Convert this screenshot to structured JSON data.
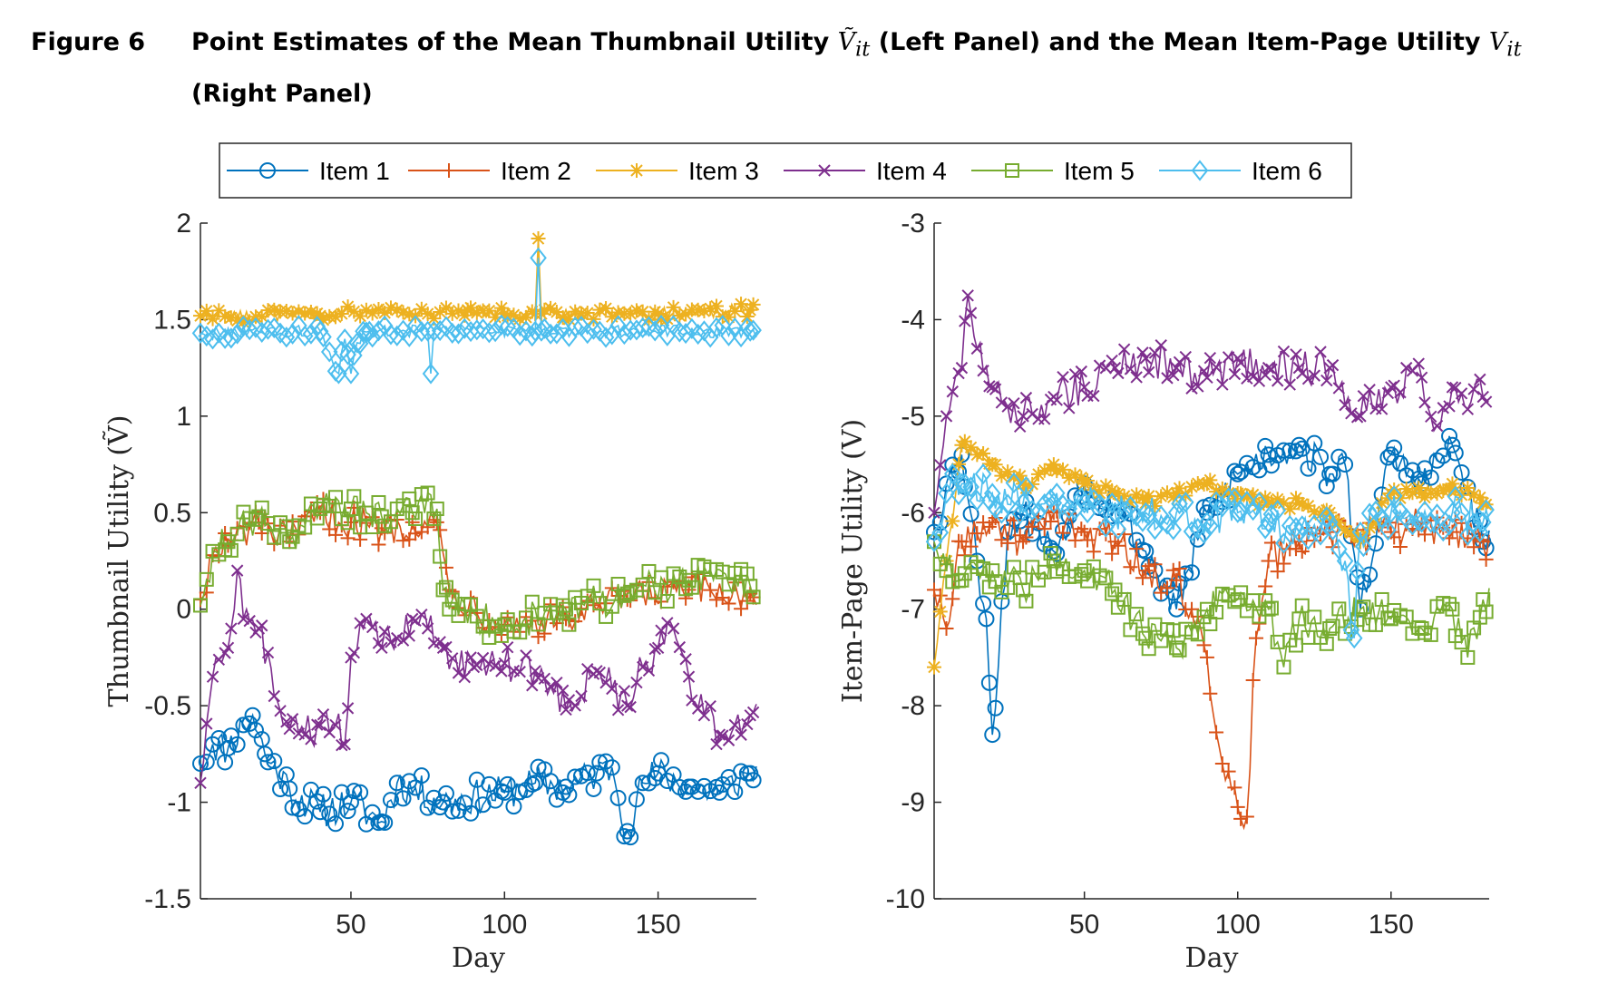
{
  "figure": {
    "label": "Figure 6",
    "title_part1": "Point Estimates of the Mean Thumbnail Utility ",
    "title_sym1": "Ṽ",
    "title_sub1": "it",
    "title_part2": " (Left Panel) and the Mean Item-Page Utility ",
    "title_sym2": "V",
    "title_sub2": "it",
    "title_part3": " (Right Panel)"
  },
  "legend": [
    {
      "name": "Item 1",
      "color": "#0072BD",
      "marker": "circle"
    },
    {
      "name": "Item 2",
      "color": "#D95319",
      "marker": "plus"
    },
    {
      "name": "Item 3",
      "color": "#EDB120",
      "marker": "asterisk"
    },
    {
      "name": "Item 4",
      "color": "#7E2F8E",
      "marker": "cross"
    },
    {
      "name": "Item 5",
      "color": "#77AC30",
      "marker": "square"
    },
    {
      "name": "Item 6",
      "color": "#4DBEEE",
      "marker": "diamond"
    }
  ],
  "chart_data": [
    {
      "type": "line",
      "panel": "left",
      "xlabel": "Day",
      "ylabel": "Thumbnail Utility (Ṽ)",
      "xlim": [
        1,
        182
      ],
      "ylim": [
        -1.5,
        2
      ],
      "xticks": [
        50,
        100,
        150
      ],
      "yticks": [
        -1.5,
        -1,
        -0.5,
        0,
        0.5,
        1,
        1.5,
        2
      ],
      "series_anchors": [
        {
          "name": "Item 1",
          "x": [
            1,
            5,
            10,
            15,
            18,
            22,
            30,
            40,
            50,
            60,
            65,
            80,
            100,
            110,
            120,
            130,
            135,
            140,
            145,
            150,
            160,
            170,
            180
          ],
          "y": [
            -0.8,
            -0.7,
            -0.72,
            -0.6,
            -0.55,
            -0.75,
            -0.93,
            -1.05,
            -1.0,
            -1.1,
            -0.9,
            -1.0,
            -0.95,
            -0.9,
            -0.92,
            -0.85,
            -0.82,
            -1.15,
            -0.9,
            -0.85,
            -0.92,
            -0.95,
            -0.85
          ]
        },
        {
          "name": "Item 2",
          "x": [
            1,
            5,
            10,
            20,
            30,
            40,
            50,
            60,
            70,
            78,
            82,
            100,
            120,
            140,
            160,
            180
          ],
          "y": [
            0.05,
            0.28,
            0.33,
            0.45,
            0.35,
            0.5,
            0.45,
            0.42,
            0.45,
            0.45,
            0.1,
            -0.08,
            -0.05,
            0.05,
            0.1,
            0.08
          ]
        },
        {
          "name": "Item 3",
          "x": [
            1,
            40,
            47,
            55,
            65,
            75,
            88,
            100,
            110,
            111,
            112,
            150,
            180
          ],
          "y": [
            1.52,
            1.52,
            1.53,
            1.55,
            1.55,
            1.53,
            1.55,
            1.53,
            1.53,
            1.92,
            1.53,
            1.53,
            1.55
          ]
        },
        {
          "name": "Item 4",
          "x": [
            1,
            5,
            10,
            13,
            15,
            20,
            25,
            30,
            35,
            40,
            45,
            48,
            50,
            55,
            60,
            65,
            70,
            75,
            80,
            90,
            100,
            110,
            115,
            120,
            125,
            130,
            140,
            145,
            150,
            155,
            160,
            165,
            170,
            175,
            180
          ],
          "y": [
            -0.9,
            -0.35,
            -0.2,
            0.2,
            -0.05,
            -0.1,
            -0.45,
            -0.62,
            -0.65,
            -0.6,
            -0.6,
            -0.7,
            -0.25,
            -0.05,
            -0.2,
            -0.15,
            -0.05,
            -0.1,
            -0.2,
            -0.3,
            -0.28,
            -0.32,
            -0.4,
            -0.52,
            -0.45,
            -0.32,
            -0.5,
            -0.3,
            -0.2,
            -0.1,
            -0.35,
            -0.55,
            -0.65,
            -0.6,
            -0.55
          ]
        },
        {
          "name": "Item 5",
          "x": [
            1,
            5,
            10,
            20,
            30,
            40,
            45,
            50,
            60,
            70,
            78,
            80,
            82,
            100,
            120,
            140,
            160,
            180
          ],
          "y": [
            0.02,
            0.3,
            0.35,
            0.48,
            0.35,
            0.52,
            0.58,
            0.52,
            0.48,
            0.5,
            0.52,
            0.1,
            0.0,
            -0.08,
            0.0,
            0.08,
            0.15,
            0.12
          ]
        },
        {
          "name": "Item 6",
          "x": [
            1,
            40,
            46,
            48,
            50,
            52,
            54,
            56,
            75,
            76,
            77,
            110,
            111,
            112,
            180
          ],
          "y": [
            1.43,
            1.44,
            1.22,
            1.4,
            1.22,
            1.38,
            1.44,
            1.44,
            1.44,
            1.22,
            1.44,
            1.44,
            1.82,
            1.44,
            1.44
          ]
        }
      ]
    },
    {
      "type": "line",
      "panel": "right",
      "xlabel": "Day",
      "ylabel": "Item-Page Utility (V)",
      "xlim": [
        1,
        182
      ],
      "ylim": [
        -10,
        -3
      ],
      "xticks": [
        50,
        100,
        150
      ],
      "yticks": [
        -10,
        -9,
        -8,
        -7,
        -6,
        -5,
        -4,
        -3
      ],
      "series_anchors": [
        {
          "name": "Item 1",
          "x": [
            1,
            5,
            10,
            15,
            18,
            20,
            25,
            30,
            40,
            50,
            60,
            70,
            80,
            90,
            100,
            110,
            120,
            130,
            135,
            140,
            150,
            160,
            170,
            180
          ],
          "y": [
            -6.2,
            -5.7,
            -5.4,
            -6.5,
            -7.1,
            -8.3,
            -6.2,
            -6.0,
            -6.4,
            -5.7,
            -5.9,
            -6.4,
            -7.0,
            -6.0,
            -5.6,
            -5.4,
            -5.3,
            -5.6,
            -5.5,
            -7.0,
            -5.4,
            -5.7,
            -5.3,
            -6.3
          ]
        },
        {
          "name": "Item 2",
          "x": [
            1,
            5,
            10,
            20,
            30,
            40,
            50,
            60,
            70,
            80,
            85,
            90,
            95,
            100,
            103,
            106,
            110,
            120,
            130,
            140,
            150,
            160,
            170,
            180
          ],
          "y": [
            -6.8,
            -7.2,
            -6.3,
            -6.1,
            -6.3,
            -6.0,
            -6.2,
            -6.3,
            -6.6,
            -6.7,
            -7.0,
            -7.5,
            -8.6,
            -9.05,
            -9.15,
            -7.3,
            -6.5,
            -6.3,
            -6.2,
            -6.3,
            -6.2,
            -6.1,
            -6.2,
            -6.3
          ]
        },
        {
          "name": "Item 3",
          "x": [
            1,
            5,
            10,
            15,
            20,
            30,
            40,
            50,
            60,
            70,
            80,
            90,
            100,
            110,
            120,
            130,
            140,
            150,
            160,
            170,
            180
          ],
          "y": [
            -7.6,
            -6.5,
            -5.3,
            -5.4,
            -5.5,
            -5.7,
            -5.5,
            -5.7,
            -5.8,
            -5.9,
            -5.8,
            -5.7,
            -5.8,
            -5.9,
            -5.9,
            -6.0,
            -6.3,
            -5.8,
            -5.8,
            -5.7,
            -5.9
          ]
        },
        {
          "name": "Item 4",
          "x": [
            1,
            5,
            10,
            12,
            15,
            20,
            25,
            30,
            40,
            50,
            60,
            70,
            80,
            90,
            100,
            110,
            120,
            130,
            140,
            150,
            160,
            165,
            170,
            180
          ],
          "y": [
            -6.0,
            -5.0,
            -4.5,
            -3.75,
            -4.3,
            -4.7,
            -4.9,
            -5.0,
            -4.8,
            -4.7,
            -4.5,
            -4.4,
            -4.5,
            -4.6,
            -4.4,
            -4.5,
            -4.5,
            -4.5,
            -5.0,
            -4.7,
            -4.6,
            -5.1,
            -4.7,
            -4.8
          ]
        },
        {
          "name": "Item 5",
          "x": [
            1,
            5,
            10,
            20,
            30,
            40,
            50,
            60,
            70,
            80,
            90,
            100,
            110,
            115,
            120,
            130,
            140,
            150,
            160,
            170,
            175,
            180
          ],
          "y": [
            -6.3,
            -6.6,
            -6.7,
            -6.6,
            -6.8,
            -6.5,
            -6.6,
            -6.8,
            -7.3,
            -7.4,
            -7.0,
            -6.9,
            -7.0,
            -7.6,
            -7.1,
            -7.2,
            -7.0,
            -7.1,
            -7.2,
            -7.0,
            -7.5,
            -6.9
          ]
        },
        {
          "name": "Item 6",
          "x": [
            1,
            5,
            10,
            20,
            30,
            40,
            50,
            60,
            70,
            80,
            90,
            100,
            110,
            120,
            130,
            135,
            138,
            140,
            150,
            160,
            170,
            180
          ],
          "y": [
            -6.3,
            -5.8,
            -5.7,
            -5.8,
            -5.9,
            -5.9,
            -5.9,
            -6.0,
            -6.0,
            -6.0,
            -6.1,
            -6.0,
            -6.1,
            -6.2,
            -6.1,
            -6.5,
            -7.3,
            -6.2,
            -6.0,
            -6.1,
            -6.0,
            -6.1
          ]
        }
      ]
    }
  ]
}
